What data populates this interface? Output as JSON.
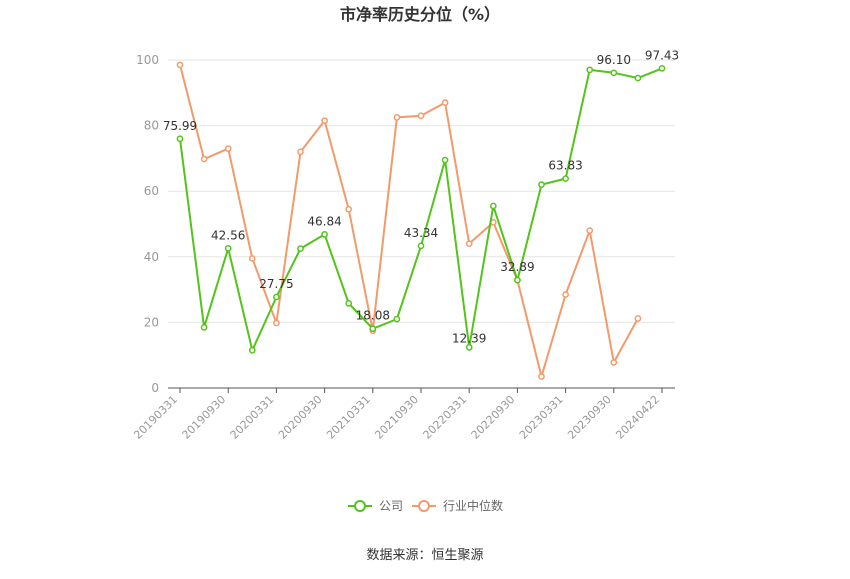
{
  "title": "市净率历史分位（%）",
  "source": "数据来源：恒生聚源",
  "colors": {
    "company": "#52c41a",
    "industry": "#f39a6b",
    "grid": "#e6e6e6",
    "axis": "#555555"
  },
  "chart_data": {
    "type": "line",
    "title": "市净率历史分位（%）",
    "ylim": [
      0,
      100
    ],
    "y_ticks": [
      "0",
      "20",
      "40",
      "60",
      "80",
      "100"
    ],
    "x_tick_labels": [
      "20190331",
      "20190930",
      "20200331",
      "20200930",
      "20210331",
      "20210930",
      "20220331",
      "20220930",
      "20230331",
      "20230930",
      "20240422"
    ],
    "grid": true,
    "legend_position": "bottom",
    "series": [
      {
        "name": "公司",
        "color": "#52c41a",
        "values": [
          75.99,
          18.5,
          42.56,
          11.5,
          27.75,
          42.5,
          46.84,
          25.8,
          18.08,
          21.0,
          43.34,
          69.5,
          12.39,
          55.5,
          32.89,
          62.0,
          63.83,
          97.0,
          96.1,
          94.5,
          97.43
        ]
      },
      {
        "name": "行业中位数",
        "color": "#f39a6b",
        "values": [
          98.5,
          69.8,
          73.0,
          39.5,
          19.8,
          72.0,
          81.5,
          54.5,
          17.5,
          82.5,
          83.0,
          87.0,
          44.0,
          50.5,
          32.89,
          3.5,
          28.5,
          48.0,
          7.8,
          21.2
        ]
      }
    ],
    "data_labels": [
      {
        "series": 0,
        "index": 0,
        "text": "75.99"
      },
      {
        "series": 0,
        "index": 2,
        "text": "42.56"
      },
      {
        "series": 0,
        "index": 4,
        "text": "27.75"
      },
      {
        "series": 0,
        "index": 6,
        "text": "46.84"
      },
      {
        "series": 0,
        "index": 8,
        "text": "18.08"
      },
      {
        "series": 0,
        "index": 10,
        "text": "43.34"
      },
      {
        "series": 0,
        "index": 12,
        "text": "12.39"
      },
      {
        "series": 0,
        "index": 14,
        "text": "32.89"
      },
      {
        "series": 0,
        "index": 16,
        "text": "63.83"
      },
      {
        "series": 0,
        "index": 18,
        "text": "96.10"
      },
      {
        "series": 0,
        "index": 20,
        "text": "97.43"
      }
    ]
  }
}
